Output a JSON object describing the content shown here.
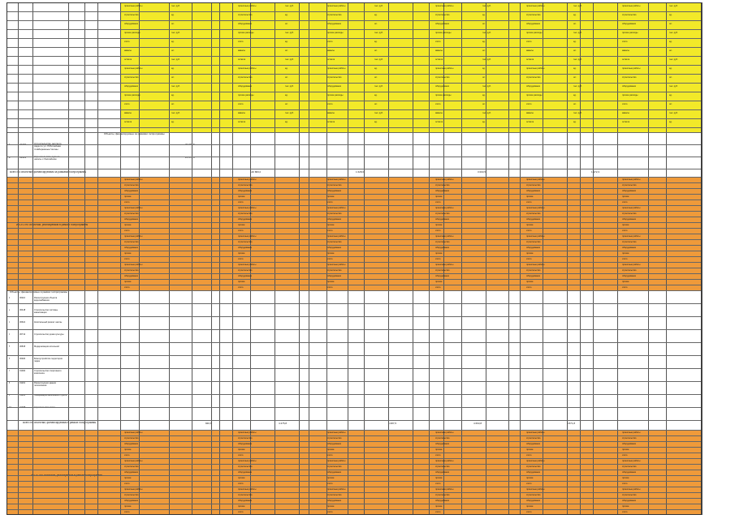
{
  "blocks": {
    "block1_title": "Объекты, финансируемые за рамками госпрограммы",
    "block1_rows": [
      {
        "num": "1",
        "code": "31302",
        "name": "Строительство детского сада по ул. Юбилейная г.Набережные Челны",
        "amount": "32 097,5",
        "status": "заключен"
      },
      {
        "num": "2",
        "code": "31413",
        "name": "Строительство здания школы с бассейном",
        "amount": "21 870,0",
        "status": "заключен"
      }
    ],
    "total1_label": "Всего по объектам, финансируемым за рамками госпрограммы",
    "total1_values": [
      "140 863,0",
      "1 628,6",
      "3 003,5",
      "1 972,3"
    ],
    "orange1_label": "ИТОГО по объектам, реализуемым в рамках госпрограммы",
    "block2_title": "Объекты, финансируемые в рамках госпрограммы",
    "block2_rows": [
      {
        "num": "1",
        "code": "30110",
        "name": "Реконструкция объекта водоснабжения"
      },
      {
        "num": "2",
        "code": "30418",
        "name": "Строительство системы канализации"
      },
      {
        "num": "3",
        "code": "30621",
        "name": "Капитальный ремонт школы"
      },
      {
        "num": "4",
        "code": "30712",
        "name": "Строительство дома культуры"
      },
      {
        "num": "5",
        "code": "30815",
        "name": "Модернизация котельной"
      },
      {
        "num": "6",
        "code": "30920",
        "name": "Благоустройство территории парка"
      },
      {
        "num": "7",
        "code": "31004",
        "name": "Строительство спортивного комплекса"
      },
      {
        "num": "8",
        "code": "31101",
        "name": "Реконструкция здания поликлиники"
      },
      {
        "num": "9",
        "code": "31205",
        "name": "Газификация населенного пункта"
      },
      {
        "num": "10",
        "code": "31308",
        "name": "Строительство моста"
      }
    ],
    "total2_label": "Всего по объектам, финансируемым в рамках госпрограммы",
    "total2_values": [
      "846,8",
      "4 275,8",
      "5 087,5",
      "4 663,8",
      "4 871,8"
    ],
    "orange2_label": "ИТОГО по объектам, реализуемым в рамках госпрограммы"
  },
  "yellow_labels": [
    "проектные работы",
    "строительство",
    "оборудование",
    "прочие расходы",
    "итого",
    "авансы",
    "остаток"
  ],
  "orange_labels": [
    "проектные работы",
    "строительство",
    "оборудование",
    "прочие",
    "итого"
  ],
  "units": [
    "тыс. руб.",
    "ед.",
    "шт."
  ]
}
